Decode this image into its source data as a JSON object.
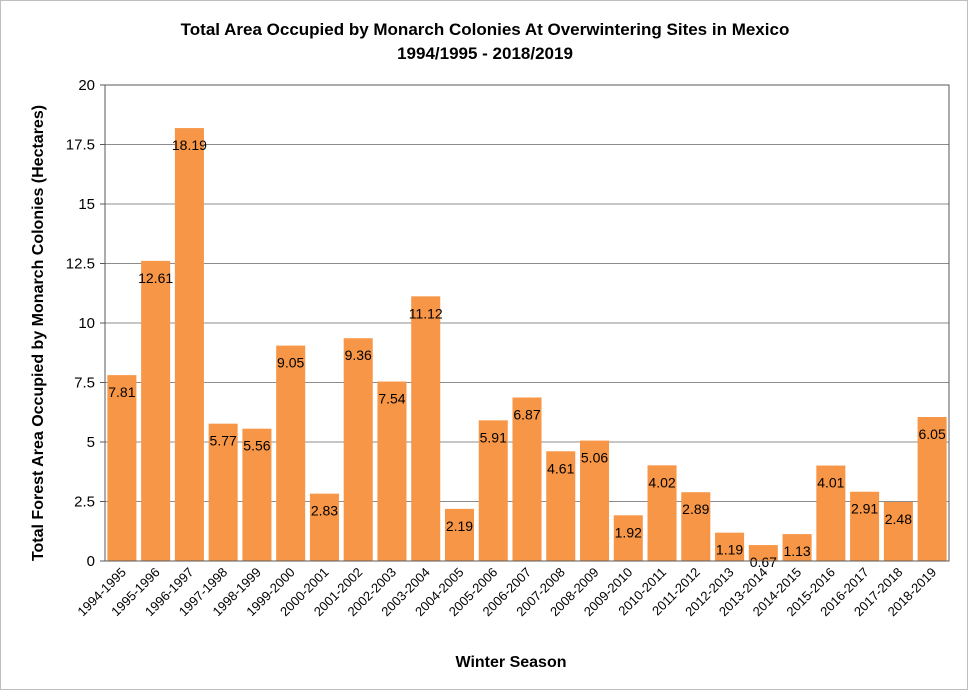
{
  "chart_data": {
    "type": "bar",
    "title": "Total Area Occupied by Monarch Colonies At Overwintering Sites in Mexico",
    "subtitle": "1994/1995 - 2018/2019",
    "xlabel": "Winter Season",
    "ylabel": "Total Forest Area Occupied by Monarch Colonies (Hectares)",
    "ylim": [
      0,
      20
    ],
    "yticks": [
      "0",
      "2.5",
      "5",
      "7.5",
      "10",
      "12.5",
      "15",
      "17.5",
      "20"
    ],
    "grid": true,
    "legend": "none",
    "bar_color": "#f79646",
    "categories": [
      "1994-1995",
      "1995-1996",
      "1996-1997",
      "1997-1998",
      "1998-1999",
      "1999-2000",
      "2000-2001",
      "2001-2002",
      "2002-2003",
      "2003-2004",
      "2004-2005",
      "2005-2006",
      "2006-2007",
      "2007-2008",
      "2008-2009",
      "2009-2010",
      "2010-2011",
      "2011-2012",
      "2012-2013",
      "2013-2014",
      "2014-2015",
      "2015-2016",
      "2016-2017",
      "2017-2018",
      "2018-2019"
    ],
    "values": [
      7.81,
      12.61,
      18.19,
      5.77,
      5.56,
      9.05,
      2.83,
      9.36,
      7.54,
      11.12,
      2.19,
      5.91,
      6.87,
      4.61,
      5.06,
      1.92,
      4.02,
      2.89,
      1.19,
      0.67,
      1.13,
      4.01,
      2.91,
      2.48,
      6.05
    ],
    "labels": [
      "7.81",
      "12.61",
      "18.19",
      "5.77",
      "5.56",
      "9.05",
      "2.83",
      "9.36",
      "7.54",
      "11.12",
      "2.19",
      "5.91",
      "6.87",
      "4.61",
      "5.06",
      "1.92",
      "4.02",
      "2.89",
      "1.19",
      "0.67",
      "1.13",
      "4.01",
      "2.91",
      "2.48",
      "6.05"
    ]
  }
}
